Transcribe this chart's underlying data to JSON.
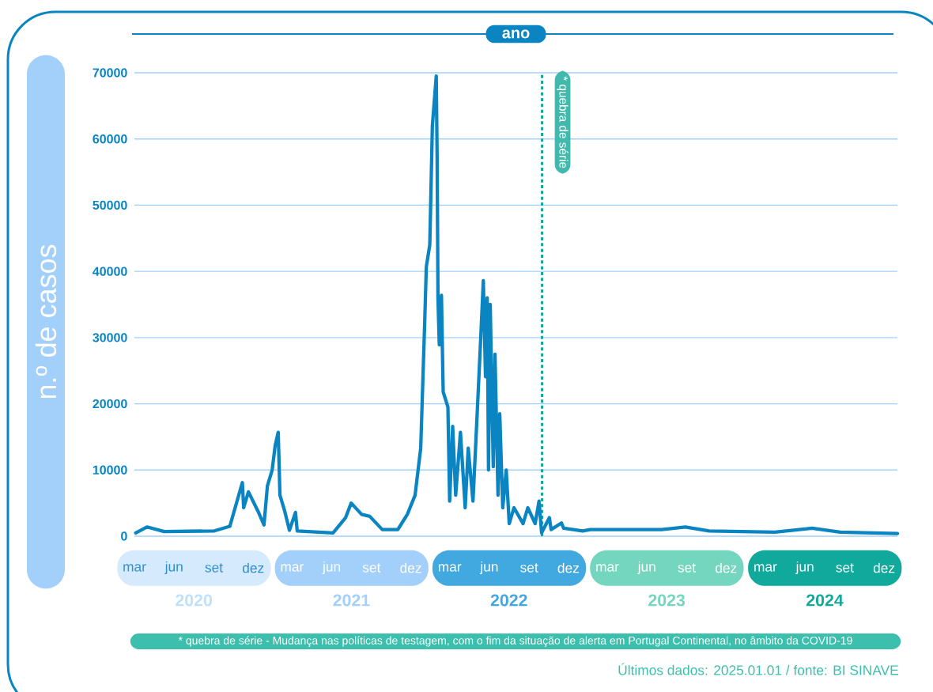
{
  "chart_data": {
    "type": "line",
    "xlabel": "ano",
    "ylabel": "n.º de casos",
    "xlim": [
      "2020-03-01",
      "2025-01-01"
    ],
    "xticks": [
      {
        "value": "2020-03-01",
        "label": "mar"
      },
      {
        "value": "2020-06-01",
        "label": "jun"
      },
      {
        "value": "2020-09-01",
        "label": "set"
      },
      {
        "value": "2020-12-01",
        "label": "dez"
      },
      {
        "value": "2021-03-01",
        "label": "mar"
      },
      {
        "value": "2021-06-01",
        "label": "jun"
      },
      {
        "value": "2021-09-01",
        "label": "set"
      },
      {
        "value": "2021-12-01",
        "label": "dez"
      },
      {
        "value": "2022-03-01",
        "label": "mar"
      },
      {
        "value": "2022-06-01",
        "label": "jun"
      },
      {
        "value": "2022-09-01",
        "label": "set"
      },
      {
        "value": "2022-12-01",
        "label": "dez"
      },
      {
        "value": "2023-03-01",
        "label": "mar"
      },
      {
        "value": "2023-06-01",
        "label": "jun"
      },
      {
        "value": "2023-09-01",
        "label": "set"
      },
      {
        "value": "2023-12-01",
        "label": "dez"
      },
      {
        "value": "2024-03-01",
        "label": "mar"
      },
      {
        "value": "2024-06-01",
        "label": "jun"
      },
      {
        "value": "2024-09-01",
        "label": "set"
      },
      {
        "value": "2024-12-01",
        "label": "dez"
      }
    ],
    "ylim": [
      0,
      70000
    ],
    "yticks": [
      0,
      10000,
      20000,
      30000,
      40000,
      50000,
      60000,
      70000
    ],
    "grid": "y",
    "series": [
      {
        "color": "#0a85c2",
        "x": [
          "2020-03-04",
          "2020-03-30",
          "2020-05-09",
          "2020-09-02",
          "2020-10-08",
          "2020-11-06",
          "2020-11-09",
          "2020-11-20",
          "2020-12-12",
          "2020-12-26",
          "2021-01-03",
          "2021-01-14",
          "2021-01-21",
          "2021-01-28",
          "2021-02-01",
          "2021-02-12",
          "2021-02-23",
          "2021-03-09",
          "2021-03-13",
          "2021-06-04",
          "2021-07-03",
          "2021-07-16",
          "2021-08-09",
          "2021-08-28",
          "2021-09-26",
          "2021-11-01",
          "2021-11-23",
          "2021-12-11",
          "2021-12-24",
          "2022-01-02",
          "2022-01-06",
          "2022-01-14",
          "2022-01-20",
          "2022-01-29",
          "2022-01-31",
          "2022-02-02",
          "2022-02-05",
          "2022-02-10",
          "2022-02-14",
          "2022-02-25",
          "2022-03-01",
          "2022-03-08",
          "2022-03-15",
          "2022-03-26",
          "2022-04-06",
          "2022-04-13",
          "2022-04-24",
          "2022-05-01",
          "2022-05-12",
          "2022-05-18",
          "2022-05-23",
          "2022-05-27",
          "2022-05-30",
          "2022-06-03",
          "2022-06-10",
          "2022-06-14",
          "2022-06-21",
          "2022-06-25",
          "2022-07-02",
          "2022-07-10",
          "2022-07-17",
          "2022-07-28",
          "2022-08-18",
          "2022-08-29",
          "2022-09-15",
          "2022-09-24",
          "2022-09-30",
          "2022-10-18",
          "2022-10-22",
          "2022-11-15",
          "2022-11-20",
          "2023-01-03",
          "2023-01-21",
          "2023-05-22",
          "2023-07-05",
          "2023-08-29",
          "2023-10-23",
          "2024-03-23",
          "2024-06-17",
          "2024-08-22",
          "2025-01-01"
        ],
        "values": [
          500,
          1400,
          700,
          800,
          1500,
          8100,
          4300,
          6700,
          3800,
          1700,
          7600,
          10000,
          13700,
          15700,
          6200,
          3800,
          900,
          3600,
          800,
          500,
          2800,
          5000,
          3300,
          3000,
          1000,
          1000,
          3300,
          6200,
          13300,
          31800,
          40700,
          44000,
          62000,
          69500,
          57200,
          36000,
          28900,
          36400,
          21800,
          19500,
          5300,
          16600,
          6200,
          15700,
          4300,
          13300,
          5300,
          14700,
          29900,
          38600,
          24100,
          36000,
          10000,
          35000,
          10500,
          27500,
          6200,
          18500,
          4300,
          10000,
          1900,
          4300,
          1900,
          4300,
          1900,
          5300,
          500,
          2800,
          1000,
          2000,
          1200,
          800,
          1000,
          1000,
          1000,
          1400,
          800,
          600,
          1200,
          600,
          400
        ]
      }
    ],
    "ref_lines": [
      {
        "axis": "x",
        "value": "2022-10-01",
        "label": "* quebra de série",
        "color": "#14a89a",
        "line_style": "dashed"
      }
    ],
    "annotations": [
      "* quebra de série - Mudança nas políticas de testagem, com o fim da situação de alerta em Portugal Continental, no âmbito da COVID-19",
      "Últimos dados: 2025.01.01 / fonte: BI SINAVE",
      "2020",
      "2021",
      "2022",
      "2023",
      "2024"
    ]
  }
}
